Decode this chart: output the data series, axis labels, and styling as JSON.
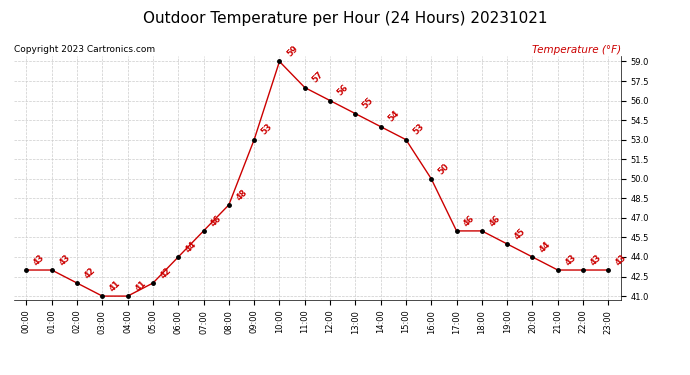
{
  "title": "Outdoor Temperature per Hour (24 Hours) 20231021",
  "copyright_text": "Copyright 2023 Cartronics.com",
  "legend_label": "Temperature (°F)",
  "hours": [
    0,
    1,
    2,
    3,
    4,
    5,
    6,
    7,
    8,
    9,
    10,
    11,
    12,
    13,
    14,
    15,
    16,
    17,
    18,
    19,
    20,
    21,
    22,
    23
  ],
  "hour_labels": [
    "00:00",
    "01:00",
    "02:00",
    "03:00",
    "04:00",
    "05:00",
    "06:00",
    "07:00",
    "08:00",
    "09:00",
    "10:00",
    "11:00",
    "12:00",
    "13:00",
    "14:00",
    "15:00",
    "16:00",
    "17:00",
    "18:00",
    "19:00",
    "20:00",
    "21:00",
    "22:00",
    "23:00"
  ],
  "temps": [
    43,
    43,
    42,
    41,
    41,
    42,
    44,
    46,
    48,
    53,
    59,
    57,
    56,
    55,
    54,
    53,
    50,
    46,
    46,
    45,
    44,
    43,
    43,
    43
  ],
  "line_color": "#cc0000",
  "marker_color": "#000000",
  "label_color": "#cc0000",
  "grid_color": "#cccccc",
  "bg_color": "#ffffff",
  "ylim_min": 41.0,
  "ylim_max": 59.0,
  "ytick_step": 1.5,
  "title_fontsize": 11,
  "copyright_fontsize": 6.5,
  "legend_fontsize": 7.5,
  "tick_fontsize": 6,
  "data_label_fontsize": 6
}
